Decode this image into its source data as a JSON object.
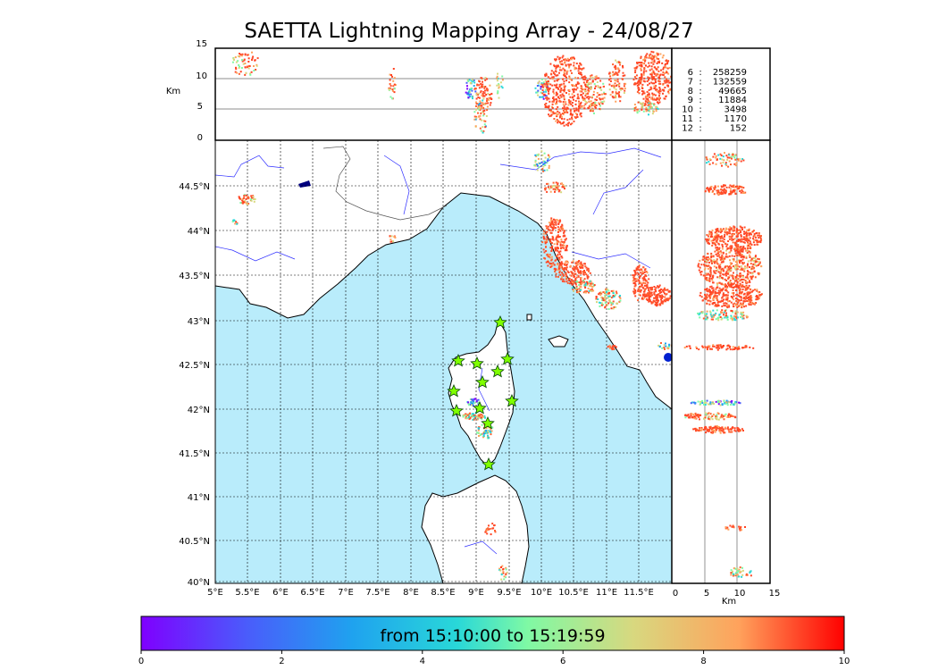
{
  "title": "SAETTA Lightning Mapping Array - 24/08/27",
  "top_panel": {
    "ylabel": "Km",
    "yticks": [
      "15",
      "10",
      "5",
      "0"
    ]
  },
  "right_panel": {
    "xlabel": "Km",
    "xticks": [
      "0",
      "5",
      "10",
      "15"
    ]
  },
  "counts": [
    {
      "station": "6",
      "value": "258259",
      "color": "#000000"
    },
    {
      "station": "7",
      "value": "132559",
      "color": "#ff0000"
    },
    {
      "station": "8",
      "value": "49665",
      "color": "#000000"
    },
    {
      "station": "9",
      "value": "11884",
      "color": "#000000"
    },
    {
      "station": "10",
      "value": "3498",
      "color": "#000000"
    },
    {
      "station": "11",
      "value": "1170",
      "color": "#000000"
    },
    {
      "station": "12",
      "value": "152",
      "color": "#000000"
    }
  ],
  "map": {
    "lat_ticks": [
      "44.5°N",
      "44°N",
      "43.5°N",
      "43°N",
      "42.5°N",
      "42°N",
      "41.5°N",
      "41°N",
      "40.5°N",
      "40°N"
    ],
    "lon_ticks": [
      "5°E",
      "5.5°E",
      "6°E",
      "6.5°E",
      "7°E",
      "7.5°E",
      "8°E",
      "8.5°E",
      "9°E",
      "9.5°E",
      "10°E",
      "10.5°E",
      "11°E",
      "11.5°E"
    ],
    "sea_color": "#b9ecfb",
    "land_color": "#ffffff"
  },
  "colorbar": {
    "label": "from 15:10:00 to 15:19:59",
    "ticks": [
      "0",
      "2",
      "4",
      "6",
      "8",
      "10"
    ]
  }
}
